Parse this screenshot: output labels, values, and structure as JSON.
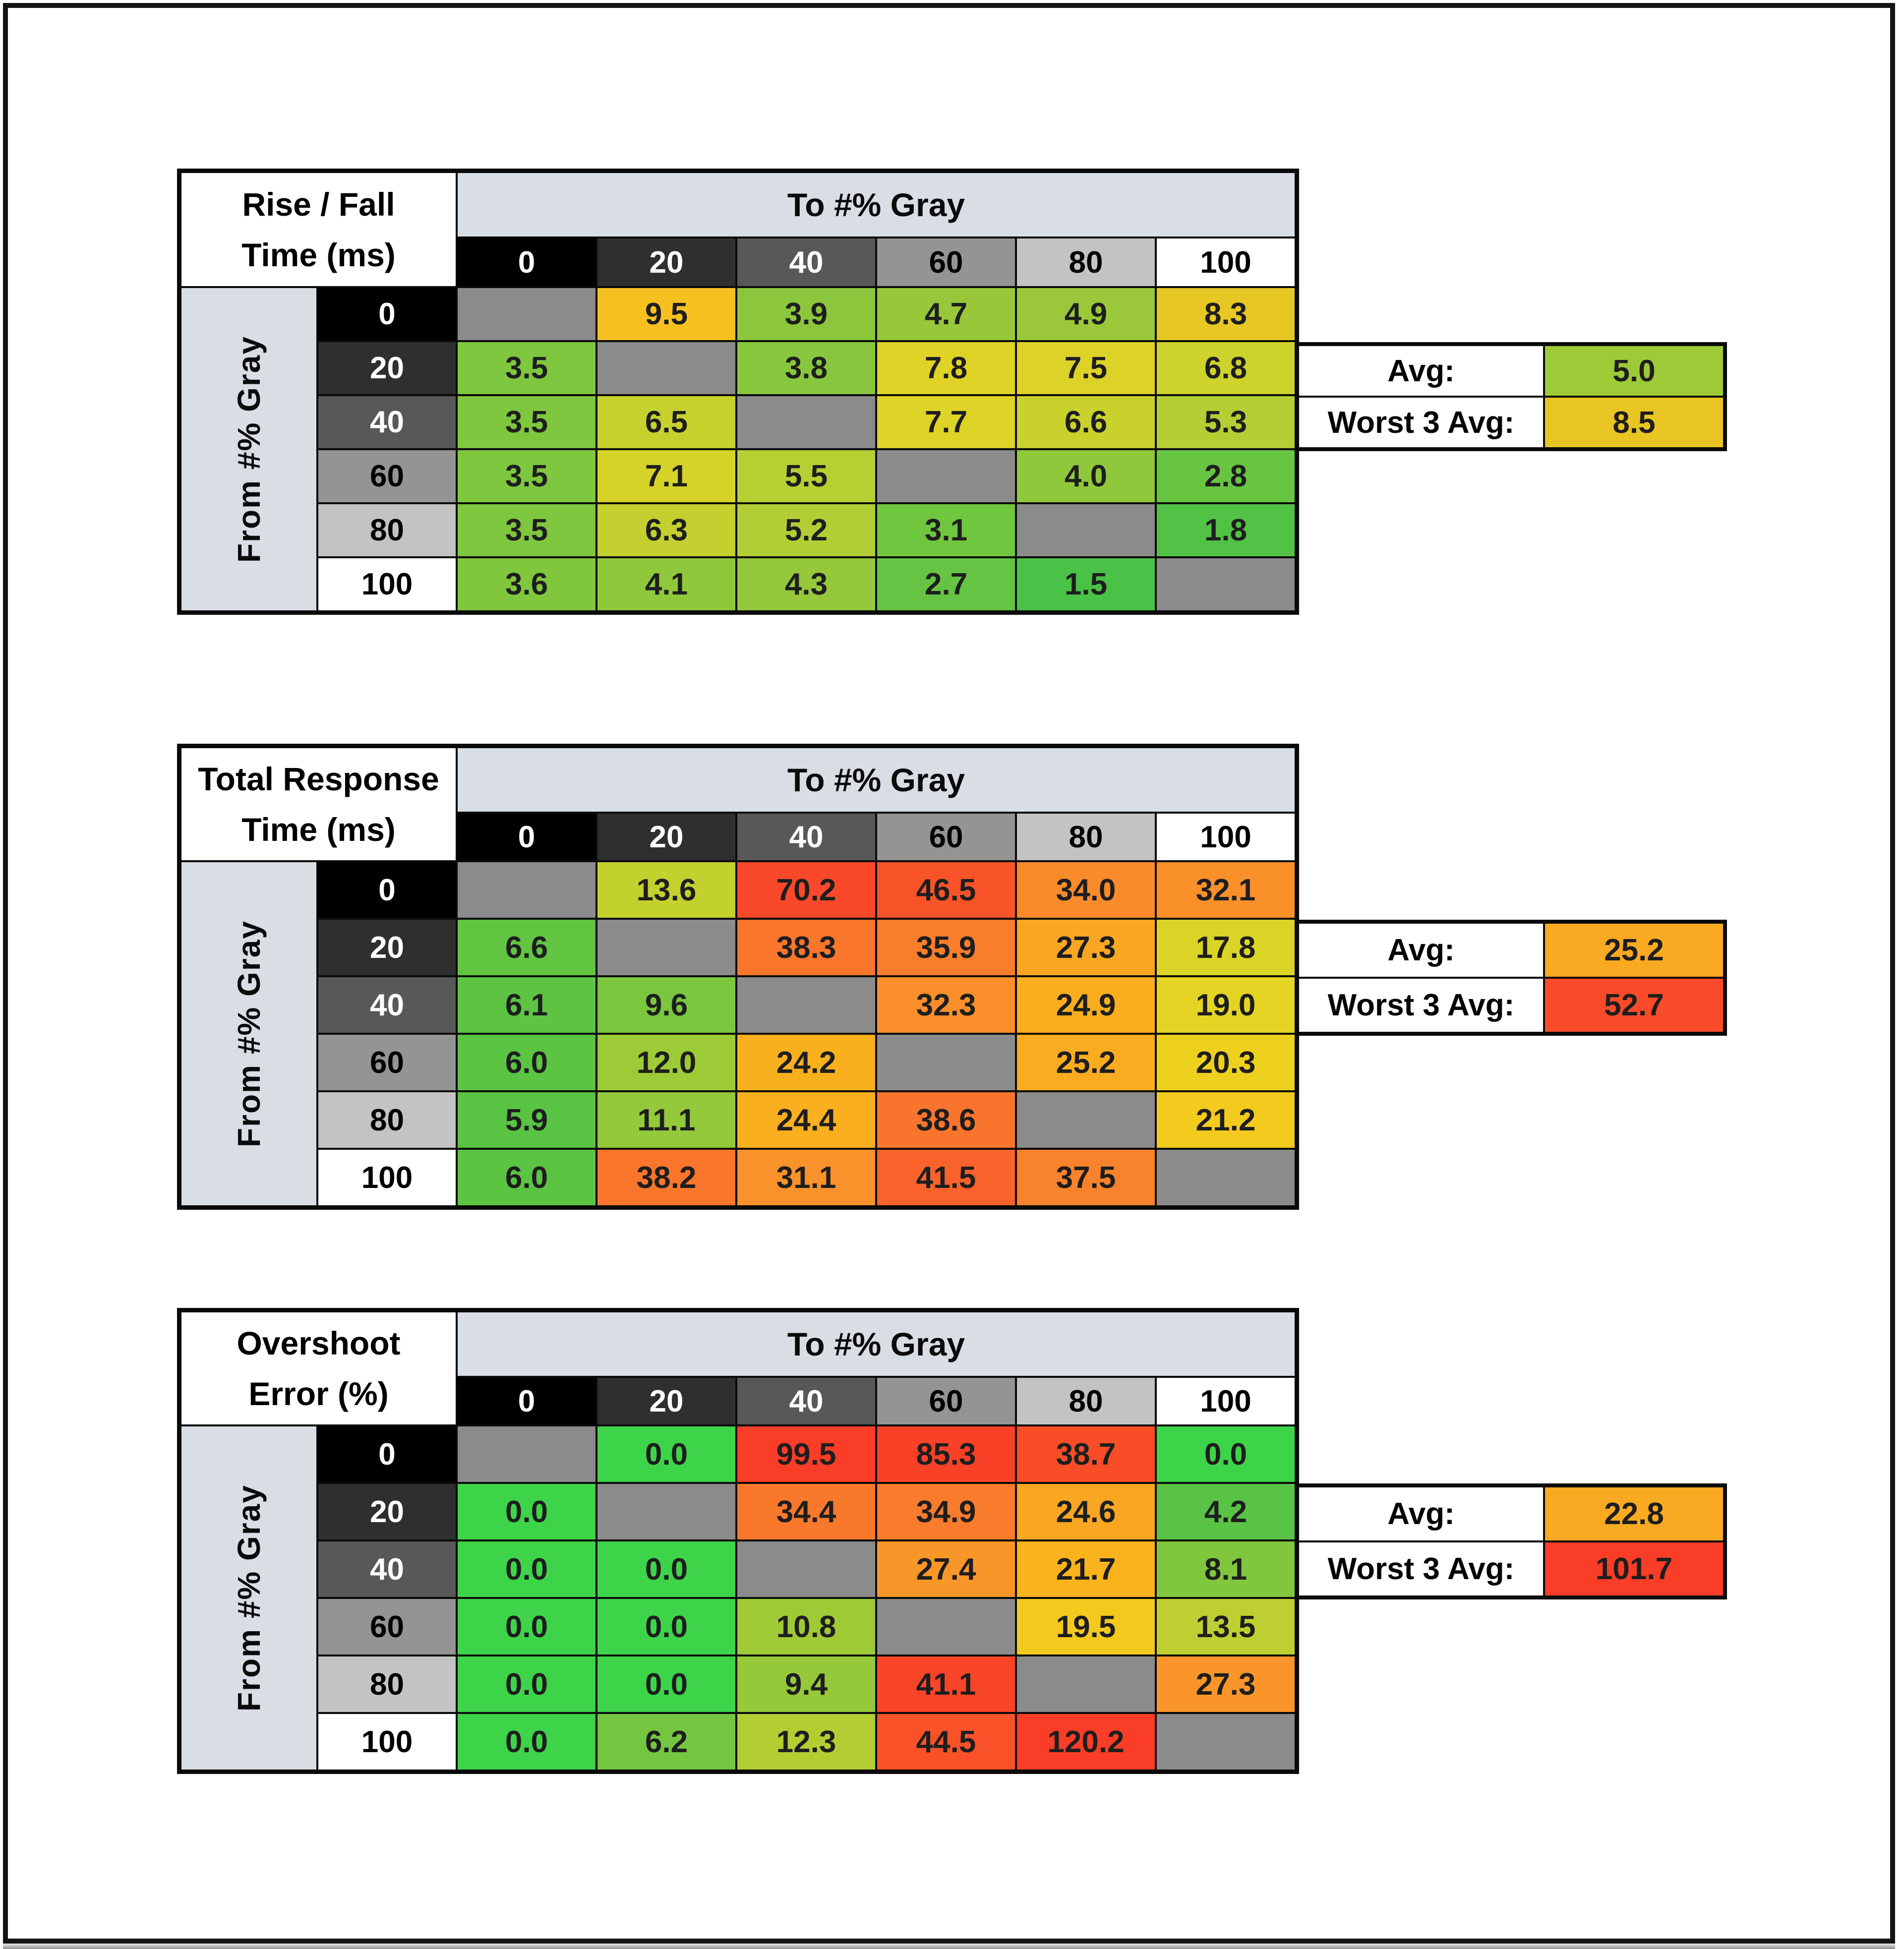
{
  "page": {
    "background": "#ffffff",
    "frame_color": "#141414",
    "band_color": "#d9dee5",
    "diagonal_color": "#8b8b8b"
  },
  "gray_scale_headers": [
    {
      "label": "0",
      "bg": "#000000",
      "fg": "#ffffff"
    },
    {
      "label": "20",
      "bg": "#2f2f2f",
      "fg": "#ffffff"
    },
    {
      "label": "40",
      "bg": "#585858",
      "fg": "#ffffff"
    },
    {
      "label": "60",
      "bg": "#949494",
      "fg": "#000000"
    },
    {
      "label": "80",
      "bg": "#c3c3c3",
      "fg": "#000000"
    },
    {
      "label": "100",
      "bg": "#ffffff",
      "fg": "#000000"
    }
  ],
  "tables": [
    {
      "name": "rise-fall-time",
      "title_lines": [
        "Rise / Fall",
        "Time (ms)"
      ],
      "to_label": "To #% Gray",
      "from_label": "From #% Gray",
      "rows": [
        {
          "from": "0",
          "cells": [
            null,
            {
              "v": "9.5",
              "bg": "#f6c120"
            },
            {
              "v": "3.9",
              "bg": "#8cc63c"
            },
            {
              "v": "4.7",
              "bg": "#98c83a"
            },
            {
              "v": "4.9",
              "bg": "#9bc83a"
            },
            {
              "v": "8.3",
              "bg": "#e6c724"
            }
          ]
        },
        {
          "from": "20",
          "cells": [
            {
              "v": "3.5",
              "bg": "#7ec73e"
            },
            null,
            {
              "v": "3.8",
              "bg": "#88c73d"
            },
            {
              "v": "7.8",
              "bg": "#e0d327"
            },
            {
              "v": "7.5",
              "bg": "#ddd228"
            },
            {
              "v": "6.8",
              "bg": "#cdd22c"
            }
          ]
        },
        {
          "from": "40",
          "cells": [
            {
              "v": "3.5",
              "bg": "#7ec73e"
            },
            {
              "v": "6.5",
              "bg": "#c7d12e"
            },
            null,
            {
              "v": "7.7",
              "bg": "#ded327"
            },
            {
              "v": "6.6",
              "bg": "#c9d12d"
            },
            {
              "v": "5.3",
              "bg": "#b3cf33"
            }
          ]
        },
        {
          "from": "60",
          "cells": [
            {
              "v": "3.5",
              "bg": "#7ec73e"
            },
            {
              "v": "7.1",
              "bg": "#d6d329"
            },
            {
              "v": "5.5",
              "bg": "#b7cf32"
            },
            null,
            {
              "v": "4.0",
              "bg": "#8fc83b"
            },
            {
              "v": "2.8",
              "bg": "#68c542"
            }
          ]
        },
        {
          "from": "80",
          "cells": [
            {
              "v": "3.5",
              "bg": "#7ec73e"
            },
            {
              "v": "6.3",
              "bg": "#c3d02f"
            },
            {
              "v": "5.2",
              "bg": "#b1ce34"
            },
            {
              "v": "3.1",
              "bg": "#71c640"
            },
            null,
            {
              "v": "1.8",
              "bg": "#52c246"
            }
          ]
        },
        {
          "from": "100",
          "cells": [
            {
              "v": "3.6",
              "bg": "#80c73e"
            },
            {
              "v": "4.1",
              "bg": "#90c83b"
            },
            {
              "v": "4.3",
              "bg": "#95c83a"
            },
            {
              "v": "2.7",
              "bg": "#65c443"
            },
            {
              "v": "1.5",
              "bg": "#4ac147"
            },
            null
          ]
        }
      ],
      "summary": {
        "avg_label": "Avg:",
        "avg": {
          "v": "5.0",
          "bg": "#9dca37"
        },
        "worst_label": "Worst 3 Avg:",
        "worst": {
          "v": "8.5",
          "bg": "#e8c522"
        }
      }
    },
    {
      "name": "total-response-time",
      "title_lines": [
        "Total Response",
        "Time (ms)"
      ],
      "to_label": "To #% Gray",
      "from_label": "From #% Gray",
      "rows": [
        {
          "from": "0",
          "cells": [
            null,
            {
              "v": "13.6",
              "bg": "#c3d12e"
            },
            {
              "v": "70.2",
              "bg": "#f9482a"
            },
            {
              "v": "46.5",
              "bg": "#f95429"
            },
            {
              "v": "34.0",
              "bg": "#f98b2b"
            },
            {
              "v": "32.1",
              "bg": "#f9902a"
            }
          ]
        },
        {
          "from": "20",
          "cells": [
            {
              "v": "6.6",
              "bg": "#61c542"
            },
            null,
            {
              "v": "38.3",
              "bg": "#f9762c"
            },
            {
              "v": "35.9",
              "bg": "#f97e2c"
            },
            {
              "v": "27.3",
              "bg": "#f9a622"
            },
            {
              "v": "17.8",
              "bg": "#dad426"
            }
          ]
        },
        {
          "from": "40",
          "cells": [
            {
              "v": "6.1",
              "bg": "#5dc443"
            },
            {
              "v": "9.6",
              "bg": "#7ac73f"
            },
            null,
            {
              "v": "32.3",
              "bg": "#f98e2b"
            },
            {
              "v": "24.9",
              "bg": "#f9ad1f"
            },
            {
              "v": "19.0",
              "bg": "#e4d424"
            }
          ]
        },
        {
          "from": "60",
          "cells": [
            {
              "v": "6.0",
              "bg": "#5bc443"
            },
            {
              "v": "12.0",
              "bg": "#9dca37"
            },
            {
              "v": "24.2",
              "bg": "#f9b01d"
            },
            null,
            {
              "v": "25.2",
              "bg": "#f9ac1f"
            },
            {
              "v": "20.3",
              "bg": "#eed01f"
            }
          ]
        },
        {
          "from": "80",
          "cells": [
            {
              "v": "5.9",
              "bg": "#59c444"
            },
            {
              "v": "11.1",
              "bg": "#93c93a"
            },
            {
              "v": "24.4",
              "bg": "#f9af1e"
            },
            {
              "v": "38.6",
              "bg": "#f9742d"
            },
            null,
            {
              "v": "21.2",
              "bg": "#f3ca1e"
            }
          ]
        },
        {
          "from": "100",
          "cells": [
            {
              "v": "6.0",
              "bg": "#5bc443"
            },
            {
              "v": "38.2",
              "bg": "#f9762c"
            },
            {
              "v": "31.1",
              "bg": "#f9922a"
            },
            {
              "v": "41.5",
              "bg": "#f9622a"
            },
            {
              "v": "37.5",
              "bg": "#f9822c"
            },
            null
          ]
        }
      ],
      "summary": {
        "avg_label": "Avg:",
        "avg": {
          "v": "25.2",
          "bg": "#f9a922"
        },
        "worst_label": "Worst 3 Avg:",
        "worst": {
          "v": "52.7",
          "bg": "#f94b29"
        }
      }
    },
    {
      "name": "overshoot-error",
      "title_lines": [
        "Overshoot",
        "Error (%)"
      ],
      "to_label": "To #% Gray",
      "from_label": "From #% Gray",
      "rows": [
        {
          "from": "0",
          "cells": [
            null,
            {
              "v": "0.0",
              "bg": "#3ed44a"
            },
            {
              "v": "99.5",
              "bg": "#f93d27"
            },
            {
              "v": "85.3",
              "bg": "#f94127"
            },
            {
              "v": "38.7",
              "bg": "#f94d27"
            },
            {
              "v": "0.0",
              "bg": "#3ed44a"
            }
          ]
        },
        {
          "from": "20",
          "cells": [
            {
              "v": "0.0",
              "bg": "#3ed44a"
            },
            null,
            {
              "v": "34.4",
              "bg": "#f9792c"
            },
            {
              "v": "34.9",
              "bg": "#f97b2c"
            },
            {
              "v": "24.6",
              "bg": "#f9a622"
            },
            {
              "v": "4.2",
              "bg": "#58c345"
            }
          ]
        },
        {
          "from": "40",
          "cells": [
            {
              "v": "0.0",
              "bg": "#3ed44a"
            },
            {
              "v": "0.0",
              "bg": "#3ed44a"
            },
            null,
            {
              "v": "27.4",
              "bg": "#f9962a"
            },
            {
              "v": "21.7",
              "bg": "#f9b31c"
            },
            {
              "v": "8.1",
              "bg": "#81c73d"
            }
          ]
        },
        {
          "from": "60",
          "cells": [
            {
              "v": "0.0",
              "bg": "#3ed44a"
            },
            {
              "v": "0.0",
              "bg": "#3ed44a"
            },
            {
              "v": "10.8",
              "bg": "#9fca36"
            },
            null,
            {
              "v": "19.5",
              "bg": "#f3c91d"
            },
            {
              "v": "13.5",
              "bg": "#bed031"
            }
          ]
        },
        {
          "from": "80",
          "cells": [
            {
              "v": "0.0",
              "bg": "#3ed44a"
            },
            {
              "v": "0.0",
              "bg": "#3ed44a"
            },
            {
              "v": "9.4",
              "bg": "#96c939"
            },
            {
              "v": "41.1",
              "bg": "#f94527"
            },
            null,
            {
              "v": "27.3",
              "bg": "#f9952a"
            }
          ]
        },
        {
          "from": "100",
          "cells": [
            {
              "v": "0.0",
              "bg": "#3ed44a"
            },
            {
              "v": "6.2",
              "bg": "#74c640"
            },
            {
              "v": "12.3",
              "bg": "#b2ce33"
            },
            {
              "v": "44.5",
              "bg": "#f95228"
            },
            {
              "v": "120.2",
              "bg": "#f93d27"
            },
            null
          ]
        }
      ],
      "summary": {
        "avg_label": "Avg:",
        "avg": {
          "v": "22.8",
          "bg": "#f9a922"
        },
        "worst_label": "Worst 3 Avg:",
        "worst": {
          "v": "101.7",
          "bg": "#f93d27"
        }
      }
    }
  ],
  "chart_data": [
    {
      "type": "heatmap",
      "title": "Rise / Fall Time (ms)",
      "xlabel": "To #% Gray",
      "ylabel": "From #% Gray",
      "x": [
        0,
        20,
        40,
        60,
        80,
        100
      ],
      "y": [
        0,
        20,
        40,
        60,
        80,
        100
      ],
      "values": [
        [
          null,
          9.5,
          3.9,
          4.7,
          4.9,
          8.3
        ],
        [
          3.5,
          null,
          3.8,
          7.8,
          7.5,
          6.8
        ],
        [
          3.5,
          6.5,
          null,
          7.7,
          6.6,
          5.3
        ],
        [
          3.5,
          7.1,
          5.5,
          null,
          4.0,
          2.8
        ],
        [
          3.5,
          6.3,
          5.2,
          3.1,
          null,
          1.8
        ],
        [
          3.6,
          4.1,
          4.3,
          2.7,
          1.5,
          null
        ]
      ],
      "avg": 5.0,
      "worst_3_avg": 8.5,
      "legend_position": "right",
      "grid": true
    },
    {
      "type": "heatmap",
      "title": "Total Response Time (ms)",
      "xlabel": "To #% Gray",
      "ylabel": "From #% Gray",
      "x": [
        0,
        20,
        40,
        60,
        80,
        100
      ],
      "y": [
        0,
        20,
        40,
        60,
        80,
        100
      ],
      "values": [
        [
          null,
          13.6,
          70.2,
          46.5,
          34.0,
          32.1
        ],
        [
          6.6,
          null,
          38.3,
          35.9,
          27.3,
          17.8
        ],
        [
          6.1,
          9.6,
          null,
          32.3,
          24.9,
          19.0
        ],
        [
          6.0,
          12.0,
          24.2,
          null,
          25.2,
          20.3
        ],
        [
          5.9,
          11.1,
          24.4,
          38.6,
          null,
          21.2
        ],
        [
          6.0,
          38.2,
          31.1,
          41.5,
          37.5,
          null
        ]
      ],
      "avg": 25.2,
      "worst_3_avg": 52.7,
      "legend_position": "right",
      "grid": true
    },
    {
      "type": "heatmap",
      "title": "Overshoot Error (%)",
      "xlabel": "To #% Gray",
      "ylabel": "From #% Gray",
      "x": [
        0,
        20,
        40,
        60,
        80,
        100
      ],
      "y": [
        0,
        20,
        40,
        60,
        80,
        100
      ],
      "values": [
        [
          null,
          0.0,
          99.5,
          85.3,
          38.7,
          0.0
        ],
        [
          0.0,
          null,
          34.4,
          34.9,
          24.6,
          4.2
        ],
        [
          0.0,
          0.0,
          null,
          27.4,
          21.7,
          8.1
        ],
        [
          0.0,
          0.0,
          10.8,
          null,
          19.5,
          13.5
        ],
        [
          0.0,
          0.0,
          9.4,
          41.1,
          null,
          27.3
        ],
        [
          0.0,
          6.2,
          12.3,
          44.5,
          120.2,
          null
        ]
      ],
      "avg": 22.8,
      "worst_3_avg": 101.7,
      "legend_position": "right",
      "grid": true
    }
  ]
}
